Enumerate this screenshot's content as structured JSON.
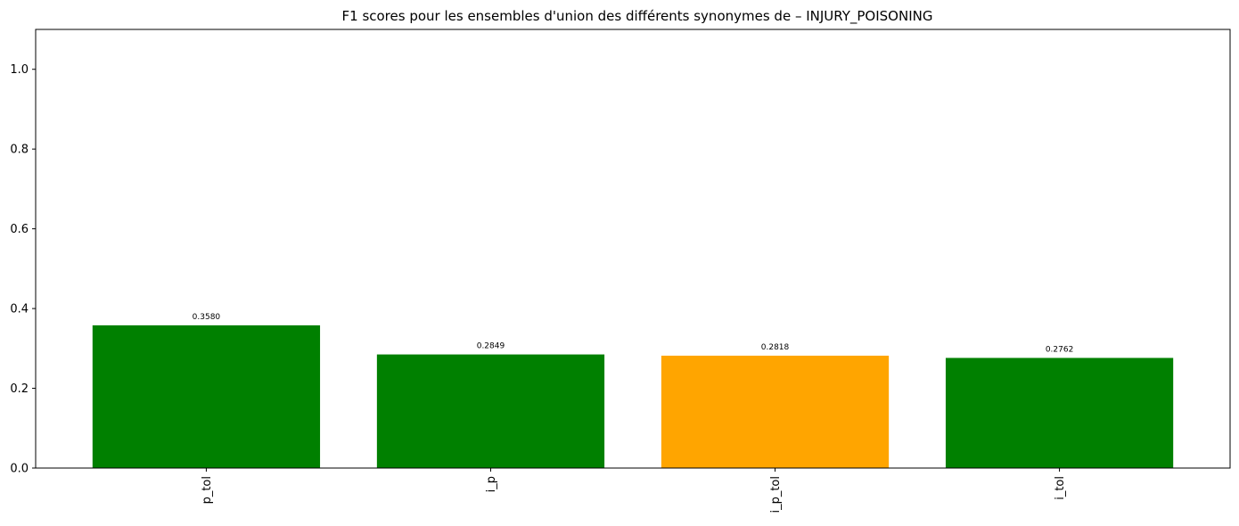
{
  "chart_data": {
    "type": "bar",
    "title": "F1 scores pour les ensembles d'union des différents synonymes de – INJURY_POISONING",
    "xlabel": "",
    "ylabel": "",
    "categories": [
      "p_tol",
      "i_p",
      "i_p_tol",
      "i_tol"
    ],
    "values": [
      0.358,
      0.2849,
      0.2818,
      0.2762
    ],
    "value_labels": [
      "0.3580",
      "0.2849",
      "0.2818",
      "0.2762"
    ],
    "colors": [
      "#008000",
      "#008000",
      "#ffa500",
      "#008000"
    ],
    "ylim": [
      0,
      1.1
    ],
    "yticks": [
      0.0,
      0.2,
      0.4,
      0.6,
      0.8,
      1.0
    ],
    "ytick_labels": [
      "0.0",
      "0.2",
      "0.4",
      "0.6",
      "0.8",
      "1.0"
    ],
    "grid": false,
    "legend": "none"
  }
}
